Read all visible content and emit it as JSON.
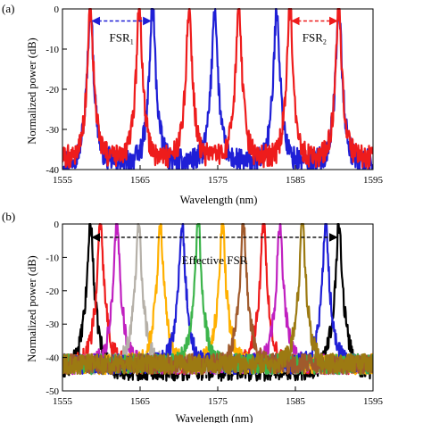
{
  "chart_data": [
    {
      "type": "line",
      "panel_label": "(a)",
      "xlabel": "Wavelength (nm)",
      "ylabel": "Normalized power (dB)",
      "xlim": [
        1555,
        1595
      ],
      "ylim": [
        -40,
        0
      ],
      "x_ticks": [
        1555,
        1565,
        1575,
        1585,
        1595
      ],
      "y_ticks": [
        0,
        -10,
        -20,
        -30,
        -40
      ],
      "series": [
        {
          "color": "#1f1fd6",
          "peaks": [
            1558.6,
            1566.6,
            1574.6,
            1582.6,
            1590.6
          ],
          "noise_floor": -38
        },
        {
          "color": "#ee1c1c",
          "peaks": [
            1558.6,
            1564.9,
            1571.3,
            1577.7,
            1584.3,
            1590.6
          ],
          "noise_floor": -37
        }
      ],
      "annotations": [
        {
          "text": "FSR",
          "sub": "1",
          "color": "#1f1fd6",
          "x1": 1558.6,
          "x2": 1566.6,
          "y": -3
        },
        {
          "text": "FSR",
          "sub": "2",
          "color": "#ee1c1c",
          "x1": 1584.3,
          "x2": 1590.6,
          "y": -3
        }
      ]
    },
    {
      "type": "line",
      "panel_label": "(b)",
      "xlabel": "Wavelength (nm)",
      "ylabel": "Normalized power (dB)",
      "xlim": [
        1555,
        1595
      ],
      "ylim": [
        -50,
        0
      ],
      "x_ticks": [
        1555,
        1565,
        1575,
        1585,
        1595
      ],
      "y_ticks": [
        0,
        -10,
        -20,
        -30,
        -40,
        -50
      ],
      "series": [
        {
          "color": "#000000",
          "peaks": [
            1558.6,
            1590.6
          ],
          "noise_floor": -44
        },
        {
          "color": "#ee1c1c",
          "peaks": [
            1559.9,
            1580.9
          ],
          "noise_floor": -42
        },
        {
          "color": "#c020c0",
          "peaks": [
            1562.0,
            1583.0
          ],
          "noise_floor": -42
        },
        {
          "color": "#b5b0a8",
          "peaks": [
            1564.8
          ],
          "noise_floor": -42
        },
        {
          "color": "#ffb000",
          "peaks": [
            1567.6,
            1575.6
          ],
          "noise_floor": -42
        },
        {
          "color": "#1f1fd6",
          "peaks": [
            1570.4,
            1588.9
          ],
          "noise_floor": -42
        },
        {
          "color": "#3cb44b",
          "peaks": [
            1572.5
          ],
          "noise_floor": -42
        },
        {
          "color": "#a05a2c",
          "peaks": [
            1578.3
          ],
          "noise_floor": -42
        },
        {
          "color": "#9c7a12",
          "peaks": [
            1585.9
          ],
          "noise_floor": -42
        }
      ],
      "annotations": [
        {
          "text": "Effective FSR",
          "color": "#000000",
          "x1": 1558.6,
          "x2": 1590.6,
          "y": -4
        }
      ]
    }
  ]
}
